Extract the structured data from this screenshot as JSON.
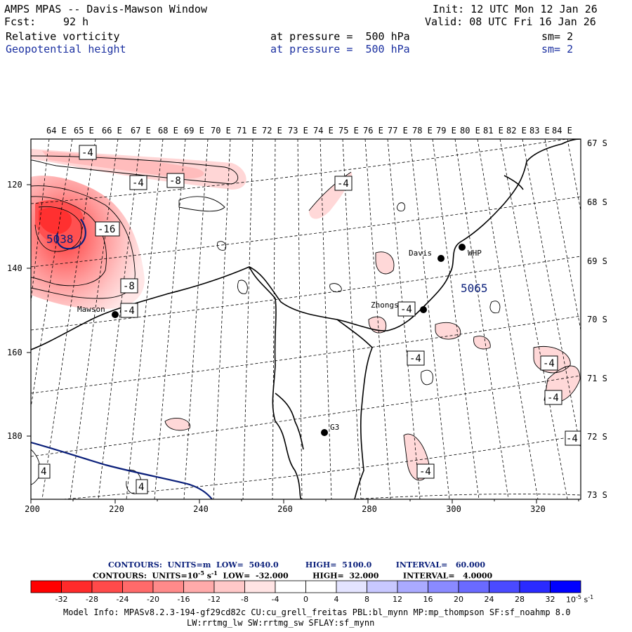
{
  "header": {
    "title": "AMPS MPAS -- Davis-Mawson Window",
    "fcst_label": "Fcst:",
    "fcst_value": "92 h",
    "init": "Init: 12 UTC Mon 12 Jan 26",
    "valid": "Valid: 08 UTC Fri 16 Jan 26",
    "field1": "Relative vorticity",
    "field1_pressure": "at pressure =  500 hPa",
    "field1_sm": "sm= 2",
    "field2": "Geopotential height",
    "field2_pressure": "at pressure =  500 hPa",
    "field2_sm": "sm= 2"
  },
  "map": {
    "longitude_labels": [
      "64 E",
      "65 E",
      "66 E",
      "67 E",
      "68 E",
      "69 E",
      "70 E",
      "71 E",
      "72 E",
      "73 E",
      "74 E",
      "75 E",
      "76 E",
      "77 E",
      "78 E",
      "79 E",
      "80 E",
      "81 E",
      "82 E",
      "83 E",
      "84 E"
    ],
    "latitude_labels": [
      "67 S",
      "68 S",
      "69 S",
      "70 S",
      "71 S",
      "72 S",
      "73 S"
    ],
    "x_ticks": [
      "200",
      "220",
      "240",
      "260",
      "280",
      "300",
      "320"
    ],
    "y_ticks": [
      "120",
      "140",
      "160",
      "180"
    ],
    "stations": [
      "Davis",
      "WHP",
      "Zhongshan",
      "Mawson",
      "G3"
    ],
    "vorticity_labels": [
      "-4",
      "-4",
      "-8",
      "-4",
      "-16",
      "-8",
      "-4",
      "-4",
      "-4",
      "-4",
      "-4",
      "-4",
      "-4",
      "4",
      "4",
      "-4"
    ],
    "height_labels": [
      "5038",
      "5065"
    ],
    "colors": {
      "coast": "#000000",
      "height_contour": "#0a1f7a",
      "grid": "#000000"
    }
  },
  "legend": {
    "contours1": "CONTOURS:  UNITS=m  LOW=  5040.0          HIGH=  5100.0         INTERVAL=   60.000",
    "contours2_prefix": "CONTOURS:  UNITS=10",
    "contours2_exp": "-5",
    "contours2_rest": " s",
    "contours2_exp2": "-1",
    "contours2_suffix": "  LOW=  -32.000         HIGH=  32.000         INTERVAL=   4.0000",
    "colorbar_ticks": [
      "-32",
      "-28",
      "-24",
      "-20",
      "-16",
      "-12",
      "-8",
      "-4",
      "0",
      "4",
      "8",
      "12",
      "16",
      "20",
      "24",
      "28",
      "32"
    ],
    "colorbar_unit": "10",
    "colorbar_unit_exp": "-5",
    "colorbar_unit_s": " s",
    "colorbar_unit_exp2": "-1",
    "colorbar_colors": [
      "#ff0000",
      "#ff2a2a",
      "#ff4a4a",
      "#ff6a6a",
      "#ff8a8a",
      "#ffaaaa",
      "#ffc8c8",
      "#ffe4e4",
      "#ffffff",
      "#ffffff",
      "#e4e4ff",
      "#c8c8ff",
      "#aaaaff",
      "#8a8aff",
      "#6a6aff",
      "#4a4aff",
      "#2a2aff",
      "#0000ff"
    ]
  },
  "model_info": {
    "line1": "Model Info: MPASv8.2.3-194-gf29cd82c CU:cu_grell_freitas PBL:bl_mynn MP:mp_thompson SF:sf_noahmp 8.0",
    "line2": "LW:rrtmg_lw SW:rrtmg_sw SFLAY:sf_mynn"
  }
}
